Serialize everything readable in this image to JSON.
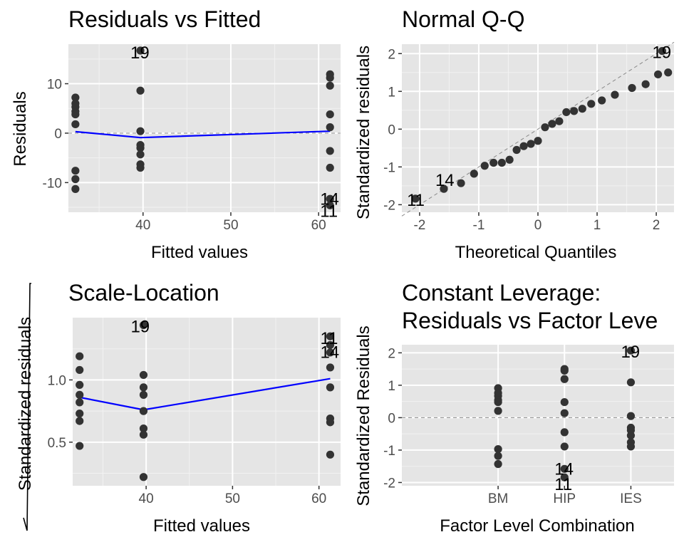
{
  "chart_data": [
    {
      "type": "scatter",
      "title": "Residuals vs Fitted",
      "xlabel": "Fitted values",
      "ylabel": "Residuals",
      "xlim": [
        31.5,
        62.5
      ],
      "ylim": [
        -16,
        18
      ],
      "x_ticks": [
        40,
        50,
        60
      ],
      "y_ticks": [
        -10,
        0,
        10
      ],
      "x_tick_labels": [
        "40",
        "50",
        "60"
      ],
      "y_tick_labels": [
        "-10",
        "0",
        "10"
      ],
      "grid": true,
      "reference_line_y": 0,
      "points": [
        {
          "x": 32.3,
          "y": 7.2
        },
        {
          "x": 32.3,
          "y": 6.0
        },
        {
          "x": 32.3,
          "y": 5.3
        },
        {
          "x": 32.3,
          "y": 4.4
        },
        {
          "x": 32.3,
          "y": 3.8
        },
        {
          "x": 32.3,
          "y": 1.8
        },
        {
          "x": 32.3,
          "y": -7.6
        },
        {
          "x": 32.3,
          "y": -9.3
        },
        {
          "x": 32.3,
          "y": -11.3
        },
        {
          "x": 39.7,
          "y": 16.7
        },
        {
          "x": 39.7,
          "y": 8.6
        },
        {
          "x": 39.7,
          "y": 0.4
        },
        {
          "x": 39.7,
          "y": -2.4
        },
        {
          "x": 39.7,
          "y": -3.0
        },
        {
          "x": 39.7,
          "y": -4.3
        },
        {
          "x": 39.7,
          "y": -6.3
        },
        {
          "x": 39.7,
          "y": -7.0
        },
        {
          "x": 61.3,
          "y": 11.9
        },
        {
          "x": 61.3,
          "y": 11.2
        },
        {
          "x": 61.3,
          "y": 9.6
        },
        {
          "x": 61.3,
          "y": 3.8
        },
        {
          "x": 61.3,
          "y": 1.2
        },
        {
          "x": 61.3,
          "y": -3.6
        },
        {
          "x": 61.3,
          "y": -7.0
        },
        {
          "x": 61.3,
          "y": -13.3
        },
        {
          "x": 61.3,
          "y": -14.6
        }
      ],
      "smooth": [
        {
          "x": 32.3,
          "y": 0.3
        },
        {
          "x": 39.7,
          "y": -0.9
        },
        {
          "x": 61.3,
          "y": 0.4
        }
      ],
      "labels": [
        {
          "text": "19",
          "x": 39.7,
          "y": 16.7
        },
        {
          "text": "14",
          "x": 61.3,
          "y": -13.3
        },
        {
          "text": "11",
          "x": 61.3,
          "y": -14.6
        }
      ]
    },
    {
      "type": "scatter",
      "title": "Normal Q-Q",
      "xlabel": "Theoretical Quantiles",
      "ylabel": "Standardized residuals",
      "xlim": [
        -2.3,
        2.3
      ],
      "ylim": [
        -2.2,
        2.25
      ],
      "x_ticks": [
        -2,
        -1,
        0,
        1,
        2
      ],
      "y_ticks": [
        -2,
        -1,
        0,
        1,
        2
      ],
      "x_tick_labels": [
        "-2",
        "-1",
        "0",
        "1",
        "2"
      ],
      "y_tick_labels": [
        "-2",
        "-1",
        "0",
        "1",
        "2"
      ],
      "grid": true,
      "reference_line": [
        {
          "x": -2.3,
          "y": -2.3
        },
        {
          "x": 2.3,
          "y": 2.3
        }
      ],
      "points": [
        {
          "x": -2.07,
          "y": -1.84
        },
        {
          "x": -1.59,
          "y": -1.58
        },
        {
          "x": -1.3,
          "y": -1.43
        },
        {
          "x": -1.08,
          "y": -1.18
        },
        {
          "x": -0.9,
          "y": -0.97
        },
        {
          "x": -0.75,
          "y": -0.89
        },
        {
          "x": -0.61,
          "y": -0.89
        },
        {
          "x": -0.48,
          "y": -0.81
        },
        {
          "x": -0.36,
          "y": -0.55
        },
        {
          "x": -0.24,
          "y": -0.45
        },
        {
          "x": -0.12,
          "y": -0.39
        },
        {
          "x": 0.0,
          "y": -0.31
        },
        {
          "x": 0.12,
          "y": 0.05
        },
        {
          "x": 0.24,
          "y": 0.14
        },
        {
          "x": 0.36,
          "y": 0.21
        },
        {
          "x": 0.48,
          "y": 0.45
        },
        {
          "x": 0.61,
          "y": 0.48
        },
        {
          "x": 0.75,
          "y": 0.54
        },
        {
          "x": 0.9,
          "y": 0.67
        },
        {
          "x": 1.08,
          "y": 0.76
        },
        {
          "x": 1.3,
          "y": 0.91
        },
        {
          "x": 1.59,
          "y": 1.09
        },
        {
          "x": 1.82,
          "y": 1.19
        },
        {
          "x": 2.03,
          "y": 1.45
        },
        {
          "x": 2.2,
          "y": 1.5
        },
        {
          "x": 2.1,
          "y": 2.07
        }
      ],
      "labels": [
        {
          "text": "11",
          "x": -2.07,
          "y": -1.84
        },
        {
          "text": "14",
          "x": -1.59,
          "y": -1.58
        },
        {
          "text": "19",
          "x": 2.1,
          "y": 2.07
        }
      ]
    },
    {
      "type": "scatter",
      "title": "Scale-Location",
      "xlabel": "Fitted values",
      "ylabel": "Standardized residuals",
      "xlim": [
        31.5,
        62.5
      ],
      "ylim": [
        0.15,
        1.5
      ],
      "x_ticks": [
        40,
        50,
        60
      ],
      "y_ticks": [
        0.5,
        1.0
      ],
      "x_tick_labels": [
        "40",
        "50",
        "60"
      ],
      "y_tick_labels": [
        "0.5",
        "1.0"
      ],
      "grid": true,
      "points": [
        {
          "x": 32.3,
          "y": 1.19
        },
        {
          "x": 32.3,
          "y": 1.08
        },
        {
          "x": 32.3,
          "y": 0.96
        },
        {
          "x": 32.3,
          "y": 0.88
        },
        {
          "x": 32.3,
          "y": 0.82
        },
        {
          "x": 32.3,
          "y": 0.73
        },
        {
          "x": 32.3,
          "y": 0.67
        },
        {
          "x": 32.3,
          "y": 0.47
        },
        {
          "x": 39.7,
          "y": 1.44
        },
        {
          "x": 39.7,
          "y": 1.04
        },
        {
          "x": 39.7,
          "y": 0.94
        },
        {
          "x": 39.7,
          "y": 0.88
        },
        {
          "x": 39.7,
          "y": 0.75
        },
        {
          "x": 39.7,
          "y": 0.61
        },
        {
          "x": 39.7,
          "y": 0.56
        },
        {
          "x": 39.7,
          "y": 0.22
        },
        {
          "x": 61.3,
          "y": 1.35
        },
        {
          "x": 61.3,
          "y": 1.28
        },
        {
          "x": 61.3,
          "y": 1.22
        },
        {
          "x": 61.3,
          "y": 1.1
        },
        {
          "x": 61.3,
          "y": 0.94
        },
        {
          "x": 61.3,
          "y": 0.69
        },
        {
          "x": 61.3,
          "y": 0.66
        },
        {
          "x": 61.3,
          "y": 0.4
        }
      ],
      "smooth": [
        {
          "x": 32.3,
          "y": 0.86
        },
        {
          "x": 39.7,
          "y": 0.76
        },
        {
          "x": 61.3,
          "y": 1.01
        }
      ],
      "labels": [
        {
          "text": "19",
          "x": 39.7,
          "y": 1.44
        },
        {
          "text": "11",
          "x": 61.3,
          "y": 1.35
        },
        {
          "text": "14",
          "x": 61.3,
          "y": 1.28
        }
      ]
    },
    {
      "type": "scatter",
      "title": "Constant Leverage:",
      "title_line2": "Residuals vs Factor Leve",
      "xlabel": "Factor Level Combination",
      "ylabel": "Standardized Residuals",
      "categories": [
        "BM",
        "HIP",
        "IES"
      ],
      "xlim": [
        -0.45,
        3.65
      ],
      "ylim": [
        -2.1,
        2.25
      ],
      "x_ticks": [
        1,
        2,
        3
      ],
      "y_ticks": [
        -2,
        -1,
        0,
        1,
        2
      ],
      "y_tick_labels": [
        "-2",
        "-1",
        "0",
        "1",
        "2"
      ],
      "grid": true,
      "reference_line_y": 0,
      "points": [
        {
          "x": 1,
          "y": 0.91
        },
        {
          "x": 1,
          "y": 0.76
        },
        {
          "x": 1,
          "y": 0.67
        },
        {
          "x": 1,
          "y": 0.54
        },
        {
          "x": 1,
          "y": 0.48
        },
        {
          "x": 1,
          "y": 0.21
        },
        {
          "x": 1,
          "y": -0.97
        },
        {
          "x": 1,
          "y": -1.18
        },
        {
          "x": 1,
          "y": -1.43
        },
        {
          "x": 2,
          "y": 1.5
        },
        {
          "x": 2,
          "y": 1.45
        },
        {
          "x": 2,
          "y": 1.19
        },
        {
          "x": 2,
          "y": 0.48
        },
        {
          "x": 2,
          "y": 0.14
        },
        {
          "x": 2,
          "y": -0.45
        },
        {
          "x": 2,
          "y": -0.89
        },
        {
          "x": 2,
          "y": -1.58
        },
        {
          "x": 2,
          "y": -1.84
        },
        {
          "x": 3,
          "y": 2.07
        },
        {
          "x": 3,
          "y": 1.09
        },
        {
          "x": 3,
          "y": 0.05
        },
        {
          "x": 3,
          "y": -0.31
        },
        {
          "x": 3,
          "y": -0.39
        },
        {
          "x": 3,
          "y": -0.55
        },
        {
          "x": 3,
          "y": -0.76
        },
        {
          "x": 3,
          "y": -0.89
        }
      ],
      "labels": [
        {
          "text": "19",
          "x": 3,
          "y": 2.07
        },
        {
          "text": "14",
          "x": 2,
          "y": -1.58
        },
        {
          "text": "11",
          "x": 2,
          "y": -1.84
        }
      ]
    }
  ],
  "style": {
    "panel_background": "#e5e5e5",
    "grid_major": "#ffffff",
    "grid_minor": "#f2f2f2",
    "point_color": "#333333",
    "smooth_color": "#0000ff",
    "reference_color": "#888888",
    "tick_color": "#333333"
  }
}
